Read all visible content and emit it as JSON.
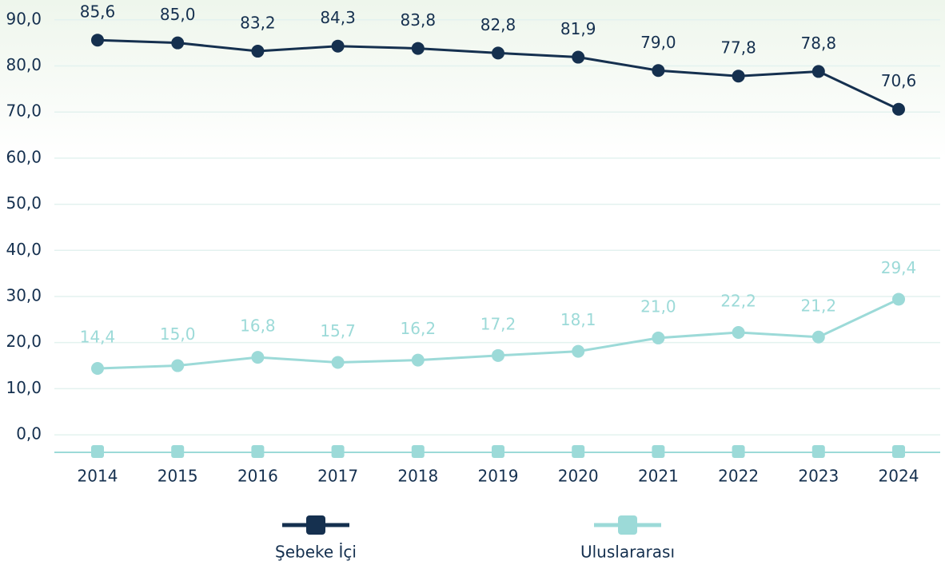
{
  "chart_data": {
    "type": "line",
    "categories": [
      "2014",
      "2015",
      "2016",
      "2017",
      "2018",
      "2019",
      "2020",
      "2021",
      "2022",
      "2023",
      "2024"
    ],
    "series": [
      {
        "name": "Şebeke İçi",
        "color": "#15304f",
        "values": [
          85.6,
          85.0,
          83.2,
          84.3,
          83.8,
          82.8,
          81.9,
          79.0,
          77.8,
          78.8,
          70.6
        ],
        "value_labels": [
          "85,6",
          "85,0",
          "83,2",
          "84,3",
          "83,8",
          "82,8",
          "81,9",
          "79,0",
          "77,8",
          "78,8",
          "70,6"
        ]
      },
      {
        "name": "Uluslararası",
        "color": "#9cdad8",
        "values": [
          14.4,
          15.0,
          16.8,
          15.7,
          16.2,
          17.2,
          18.1,
          21.0,
          22.2,
          21.2,
          29.4
        ],
        "value_labels": [
          "14,4",
          "15,0",
          "16,8",
          "15,7",
          "16,2",
          "17,2",
          "18,1",
          "21,0",
          "22,2",
          "21,2",
          "29,4"
        ]
      }
    ],
    "ylim": [
      -3.8,
      94.3
    ],
    "yticks": [
      {
        "value": 0,
        "label": "0,0"
      },
      {
        "value": 10,
        "label": "10,0"
      },
      {
        "value": 20,
        "label": "20,0"
      },
      {
        "value": 30,
        "label": "30,0"
      },
      {
        "value": 40,
        "label": "40,0"
      },
      {
        "value": 50,
        "label": "50,0"
      },
      {
        "value": 60,
        "label": "60,0"
      },
      {
        "value": 70,
        "label": "70,0"
      },
      {
        "value": 80,
        "label": "80,0"
      },
      {
        "value": 90,
        "label": "90,0"
      }
    ],
    "grid": true,
    "legend": "bottom"
  }
}
